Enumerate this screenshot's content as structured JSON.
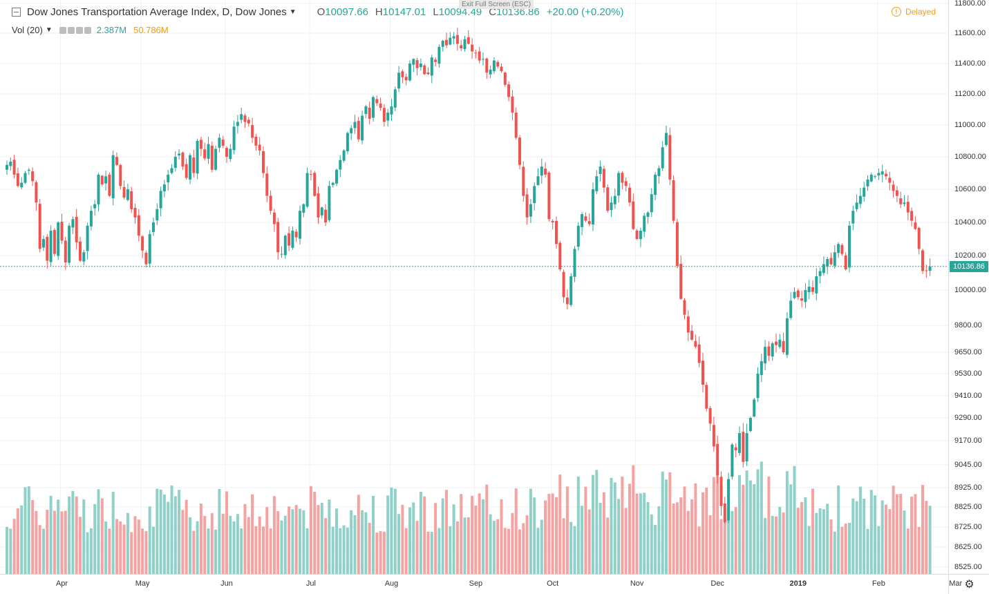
{
  "header": {
    "symbol_title": "Dow Jones Transportation Average Index, D, Dow Jones",
    "ohlc": {
      "o_label": "O",
      "o": "10097.66",
      "h_label": "H",
      "h": "10147.01",
      "l_label": "L",
      "l": "10094.49",
      "c_label": "C",
      "c": "10136.86",
      "change": "+20.00 (+0.20%)"
    },
    "volume_label": "Vol (20)",
    "volume_value": "2.387M",
    "volume_ma": "50.786M",
    "status": "Delayed",
    "fullscreen_tip": "Exit Full Screen (ESC)"
  },
  "colors": {
    "up": "#26a69a",
    "down": "#ef5350",
    "up_vol": "#8fd1c9",
    "down_vol": "#f5a3a2",
    "grid": "#eef1f2",
    "price_line": "#26a69a"
  },
  "icons": {
    "collapse": "collapse-square-icon",
    "dropdown": "chevron-down-icon",
    "status": "alert-circle-icon",
    "settings": "gear-icon"
  },
  "chart_data": {
    "type": "candlestick",
    "title": "Dow Jones Transportation Average Index, D, Dow Jones",
    "current_price": "10136.86",
    "price_axis_ticks": [
      "11800.00",
      "11600.00",
      "11400.00",
      "11200.00",
      "11000.00",
      "10800.00",
      "10600.00",
      "10400.00",
      "10200.00",
      "10000.00",
      "9800.00",
      "9650.00",
      "9530.00",
      "9410.00",
      "9290.00",
      "9170.00",
      "9045.00",
      "8925.00",
      "8825.00",
      "8725.00",
      "8625.00",
      "8525.00"
    ],
    "price_axis_tick_values": [
      11800,
      11600,
      11400,
      11200,
      11000,
      10800,
      10600,
      10400,
      10200,
      10000,
      9800,
      9650,
      9530,
      9410,
      9290,
      9170,
      9045,
      8925,
      8825,
      8725,
      8625,
      8525
    ],
    "time_axis_labels": [
      "Apr",
      "May",
      "Jun",
      "Jul",
      "Aug",
      "Sep",
      "Oct",
      "Nov",
      "Dec",
      "2019",
      "Feb",
      "Mar"
    ],
    "time_axis_bold": "2019",
    "time_label_index": [
      15,
      37,
      60,
      83,
      105,
      128,
      149,
      172,
      194,
      216,
      238,
      259
    ],
    "grid": true,
    "series": [
      {
        "name": "price",
        "close": [
          10750,
          10770,
          10690,
          10620,
          10640,
          10700,
          10720,
          10650,
          10520,
          10240,
          10300,
          10170,
          10350,
          10210,
          10400,
          10290,
          10160,
          10380,
          10420,
          10280,
          10170,
          10220,
          10380,
          10470,
          10510,
          10690,
          10630,
          10680,
          10560,
          10810,
          10750,
          10620,
          10550,
          10600,
          10480,
          10430,
          10320,
          10230,
          10150,
          10330,
          10400,
          10480,
          10590,
          10630,
          10690,
          10730,
          10800,
          10820,
          10740,
          10670,
          10810,
          10700,
          10900,
          10850,
          10790,
          10880,
          10720,
          10850,
          10920,
          10870,
          10800,
          10850,
          10990,
          11020,
          11070,
          11020,
          11010,
          10920,
          10870,
          10840,
          10700,
          10560,
          10470,
          10390,
          10220,
          10210,
          10320,
          10260,
          10350,
          10310,
          10470,
          10510,
          10700,
          10690,
          10560,
          10430,
          10490,
          10400,
          10620,
          10640,
          10720,
          10780,
          10840,
          10950,
          10980,
          11020,
          10910,
          11060,
          11120,
          11040,
          11180,
          11140,
          11110,
          11020,
          11080,
          11120,
          11230,
          11340,
          11310,
          11290,
          11400,
          11430,
          11370,
          11400,
          11330,
          11330,
          11440,
          11410,
          11510,
          11550,
          11520,
          11570,
          11580,
          11530,
          11500,
          11560,
          11530,
          11480,
          11470,
          11420,
          11430,
          11340,
          11360,
          11420,
          11380,
          11350,
          11260,
          11180,
          11080,
          10920,
          10750,
          10560,
          10430,
          10510,
          10620,
          10680,
          10740,
          10690,
          10420,
          10400,
          10270,
          10120,
          9960,
          9920,
          10080,
          10240,
          10380,
          10450,
          10410,
          10390,
          10600,
          10680,
          10740,
          10610,
          10470,
          10520,
          10560,
          10700,
          10640,
          10620,
          10520,
          10360,
          10300,
          10350,
          10440,
          10460,
          10570,
          10690,
          10730,
          10860,
          10950,
          10660,
          10410,
          10140,
          9950,
          9860,
          9760,
          9720,
          9680,
          9590,
          9470,
          9340,
          9260,
          9140,
          8990,
          8830,
          8750,
          8970,
          9150,
          9120,
          9210,
          9060,
          9210,
          9290,
          9390,
          9530,
          9600,
          9680,
          9630,
          9700,
          9690,
          9720,
          9650,
          9840,
          9940,
          9990,
          9960,
          9940,
          10000,
          10020,
          9990,
          10080,
          10110,
          10150,
          10180,
          10150,
          10220,
          10270,
          10210,
          10120,
          10380,
          10470,
          10520,
          10560,
          10610,
          10660,
          10690,
          10680,
          10700,
          10710,
          10680,
          10640,
          10590,
          10560,
          10510,
          10520,
          10460,
          10410,
          10360,
          10240,
          10110,
          10110,
          10137
        ]
      },
      {
        "name": "volume",
        "values": []
      }
    ]
  }
}
